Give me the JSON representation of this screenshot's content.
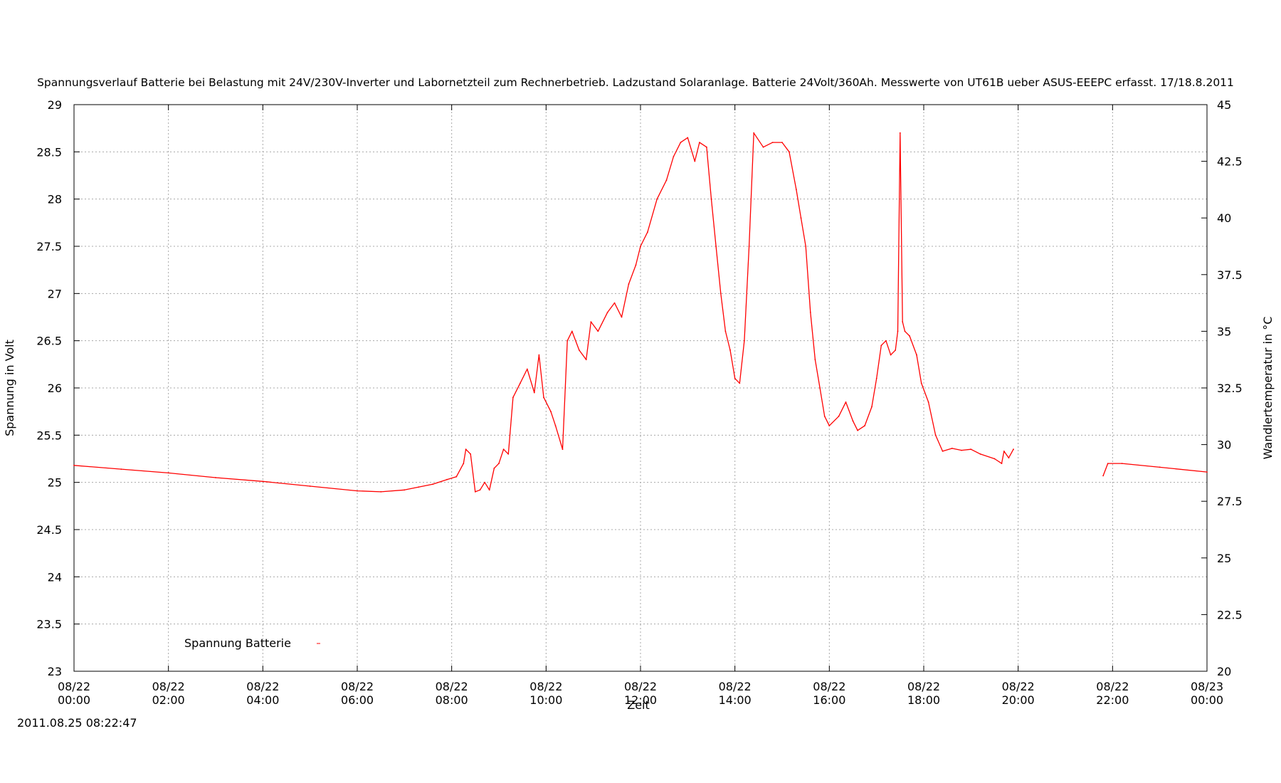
{
  "chart_data": {
    "type": "line",
    "title": "Spannungsverlauf Batterie bei Belastung mit 24V/230V-Inverter und Labornetzteil zum Rechnerbetrieb. Ladzustand Solaranlage. Batterie 24Volt/360Ah. Messwerte von UT61B ueber ASUS-EEEPC erfasst. 17/18.8.2011",
    "xlabel": "Zeit",
    "ylabel": "Spannung in Volt",
    "y2label": "Wandlertemperatur in °C",
    "timestamp": "2011.08.25 08:22:47",
    "xlim_hours": [
      0,
      24
    ],
    "ylim": [
      23,
      29
    ],
    "y2lim": [
      20,
      45
    ],
    "grid": true,
    "legend_position": "bottom-left",
    "x_ticks": [
      {
        "h": 0,
        "date": "08/22",
        "time": "00:00"
      },
      {
        "h": 2,
        "date": "08/22",
        "time": "02:00"
      },
      {
        "h": 4,
        "date": "08/22",
        "time": "04:00"
      },
      {
        "h": 6,
        "date": "08/22",
        "time": "06:00"
      },
      {
        "h": 8,
        "date": "08/22",
        "time": "08:00"
      },
      {
        "h": 10,
        "date": "08/22",
        "time": "10:00"
      },
      {
        "h": 12,
        "date": "08/22",
        "time": "12:00"
      },
      {
        "h": 14,
        "date": "08/22",
        "time": "14:00"
      },
      {
        "h": 16,
        "date": "08/22",
        "time": "16:00"
      },
      {
        "h": 18,
        "date": "08/22",
        "time": "18:00"
      },
      {
        "h": 20,
        "date": "08/22",
        "time": "20:00"
      },
      {
        "h": 22,
        "date": "08/22",
        "time": "22:00"
      },
      {
        "h": 24,
        "date": "08/23",
        "time": "00:00"
      }
    ],
    "y_ticks": [
      "23",
      "23.5",
      "24",
      "24.5",
      "25",
      "25.5",
      "26",
      "26.5",
      "27",
      "27.5",
      "28",
      "28.5",
      "29"
    ],
    "y2_ticks": [
      "20",
      "22.5",
      "25",
      "27.5",
      "30",
      "32.5",
      "35",
      "37.5",
      "40",
      "42.5",
      "45"
    ],
    "series": [
      {
        "name": "Spannung Batterie",
        "color": "#ff0000",
        "segments": [
          [
            [
              0,
              25.18
            ],
            [
              1,
              25.14
            ],
            [
              2,
              25.1
            ],
            [
              3,
              25.05
            ],
            [
              4,
              25.01
            ],
            [
              5,
              24.96
            ],
            [
              6,
              24.91
            ],
            [
              6.5,
              24.9
            ],
            [
              7,
              24.92
            ],
            [
              7.3,
              24.95
            ],
            [
              7.6,
              24.98
            ],
            [
              7.9,
              25.03
            ],
            [
              8.1,
              25.06
            ],
            [
              8.25,
              25.2
            ],
            [
              8.3,
              25.35
            ],
            [
              8.4,
              25.3
            ],
            [
              8.5,
              24.9
            ],
            [
              8.6,
              24.92
            ],
            [
              8.7,
              25.0
            ],
            [
              8.8,
              24.92
            ],
            [
              8.9,
              25.15
            ],
            [
              9.0,
              25.2
            ],
            [
              9.1,
              25.35
            ],
            [
              9.2,
              25.3
            ],
            [
              9.3,
              25.9
            ],
            [
              9.45,
              26.05
            ],
            [
              9.6,
              26.2
            ],
            [
              9.75,
              25.95
            ],
            [
              9.85,
              26.35
            ],
            [
              9.95,
              25.9
            ],
            [
              10.1,
              25.75
            ],
            [
              10.2,
              25.6
            ],
            [
              10.35,
              25.35
            ],
            [
              10.45,
              26.5
            ],
            [
              10.55,
              26.6
            ],
            [
              10.7,
              26.4
            ],
            [
              10.85,
              26.3
            ],
            [
              10.95,
              26.7
            ],
            [
              11.1,
              26.6
            ],
            [
              11.3,
              26.8
            ],
            [
              11.45,
              26.9
            ],
            [
              11.6,
              26.75
            ],
            [
              11.75,
              27.1
            ],
            [
              11.9,
              27.3
            ],
            [
              12.0,
              27.5
            ],
            [
              12.15,
              27.65
            ],
            [
              12.35,
              28.0
            ],
            [
              12.55,
              28.2
            ],
            [
              12.7,
              28.45
            ],
            [
              12.85,
              28.6
            ],
            [
              13.0,
              28.65
            ],
            [
              13.15,
              28.4
            ],
            [
              13.25,
              28.6
            ],
            [
              13.4,
              28.55
            ],
            [
              13.5,
              28.0
            ],
            [
              13.6,
              27.5
            ],
            [
              13.7,
              27.0
            ],
            [
              13.8,
              26.6
            ],
            [
              13.9,
              26.4
            ],
            [
              14.0,
              26.1
            ],
            [
              14.1,
              26.05
            ],
            [
              14.2,
              26.5
            ],
            [
              14.3,
              27.5
            ],
            [
              14.4,
              28.7
            ],
            [
              14.6,
              28.55
            ],
            [
              14.8,
              28.6
            ],
            [
              15.0,
              28.6
            ],
            [
              15.15,
              28.5
            ],
            [
              15.3,
              28.1
            ],
            [
              15.4,
              27.8
            ],
            [
              15.5,
              27.5
            ],
            [
              15.6,
              26.8
            ],
            [
              15.7,
              26.3
            ],
            [
              15.8,
              26.0
            ],
            [
              15.9,
              25.7
            ],
            [
              16.0,
              25.6
            ],
            [
              16.2,
              25.7
            ],
            [
              16.35,
              25.85
            ],
            [
              16.5,
              25.65
            ],
            [
              16.6,
              25.55
            ],
            [
              16.75,
              25.6
            ],
            [
              16.9,
              25.8
            ],
            [
              17.0,
              26.1
            ],
            [
              17.1,
              26.45
            ],
            [
              17.2,
              26.5
            ],
            [
              17.3,
              26.35
            ],
            [
              17.4,
              26.4
            ],
            [
              17.45,
              26.6
            ],
            [
              17.5,
              28.7
            ],
            [
              17.55,
              26.7
            ],
            [
              17.6,
              26.6
            ],
            [
              17.7,
              26.55
            ],
            [
              17.85,
              26.35
            ],
            [
              17.95,
              26.05
            ],
            [
              18.1,
              25.85
            ],
            [
              18.25,
              25.5
            ],
            [
              18.4,
              25.33
            ],
            [
              18.6,
              25.36
            ],
            [
              18.8,
              25.34
            ],
            [
              19.0,
              25.35
            ],
            [
              19.2,
              25.3
            ],
            [
              19.5,
              25.25
            ],
            [
              19.65,
              25.2
            ],
            [
              19.7,
              25.33
            ],
            [
              19.8,
              25.26
            ],
            [
              19.9,
              25.35
            ]
          ],
          [
            [
              21.8,
              25.07
            ],
            [
              21.9,
              25.2
            ],
            [
              22.2,
              25.2
            ],
            [
              23,
              25.16
            ],
            [
              24,
              25.11
            ]
          ]
        ]
      }
    ]
  }
}
